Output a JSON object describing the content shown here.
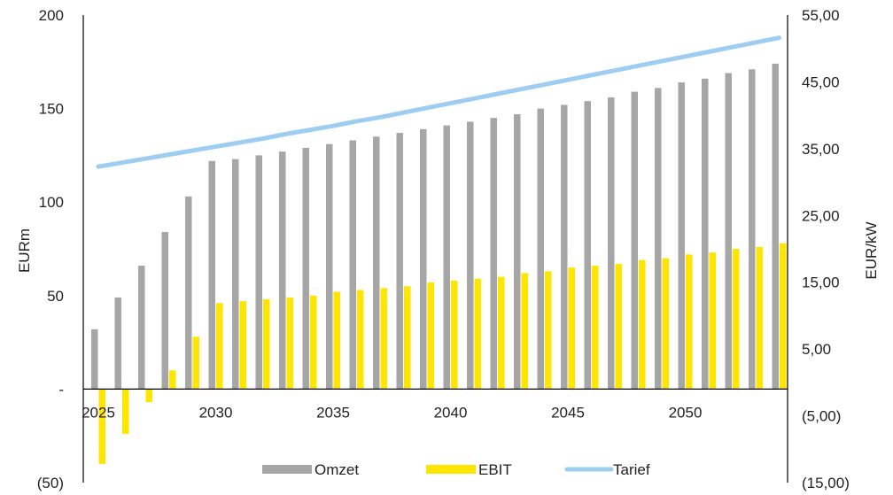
{
  "chart_data": {
    "type": "bar",
    "x": [
      2025,
      2026,
      2027,
      2028,
      2029,
      2030,
      2031,
      2032,
      2033,
      2034,
      2035,
      2036,
      2037,
      2038,
      2039,
      2040,
      2041,
      2042,
      2043,
      2044,
      2045,
      2046,
      2047,
      2048,
      2049,
      2050,
      2051,
      2052,
      2053,
      2054
    ],
    "x_tick_labels": [
      "2025",
      "2030",
      "2035",
      "2040",
      "2045",
      "2050"
    ],
    "x_tick_values": [
      2025,
      2030,
      2035,
      2040,
      2045,
      2050
    ],
    "series": [
      {
        "name": "Omzet",
        "type": "bar",
        "axis": "left",
        "color": "#a6a6a6",
        "values": [
          32,
          49,
          66,
          84,
          103,
          122,
          123,
          125,
          127,
          129,
          131,
          133,
          135,
          137,
          139,
          141,
          143,
          145,
          147,
          150,
          152,
          154,
          156,
          159,
          161,
          164,
          166,
          169,
          171,
          174
        ]
      },
      {
        "name": "EBIT",
        "type": "bar",
        "axis": "left",
        "color": "#ffe600",
        "values": [
          -40,
          -24,
          -7,
          10,
          28,
          46,
          47,
          48,
          49,
          50,
          52,
          53,
          54,
          55,
          57,
          58,
          59,
          60,
          62,
          63,
          65,
          66,
          67,
          69,
          70,
          72,
          73,
          75,
          76,
          78
        ]
      },
      {
        "name": "Tarief",
        "type": "line",
        "axis": "right",
        "color": "#9dcdf0",
        "values": [
          32.3,
          32.9,
          33.5,
          34.1,
          34.7,
          35.3,
          35.9,
          36.5,
          37.2,
          37.8,
          38.4,
          39.1,
          39.7,
          40.4,
          41.1,
          41.8,
          42.5,
          43.2,
          43.9,
          44.6,
          45.3,
          46.0,
          46.7,
          47.4,
          48.1,
          48.8,
          49.5,
          50.2,
          50.9,
          51.6
        ]
      }
    ],
    "ylabel": "EURm",
    "ylim": [
      -50,
      200
    ],
    "y_tick_values": [
      200,
      150,
      100,
      50,
      0,
      -50
    ],
    "y_tick_labels": [
      "200",
      "150",
      "100",
      "50",
      "-",
      "(50)"
    ],
    "y2label": "EUR/kW",
    "y2lim": [
      -15,
      55
    ],
    "y2_tick_values": [
      55,
      45,
      35,
      25,
      15,
      5,
      -5,
      -15
    ],
    "y2_tick_labels": [
      "55,00",
      "45,00",
      "35,00",
      "25,00",
      "15,00",
      "5,00",
      "(5,00)",
      "(15,00)"
    ],
    "grid": false,
    "legend": {
      "position": "bottom",
      "entries": [
        "Omzet",
        "EBIT",
        "Tarief"
      ]
    }
  }
}
